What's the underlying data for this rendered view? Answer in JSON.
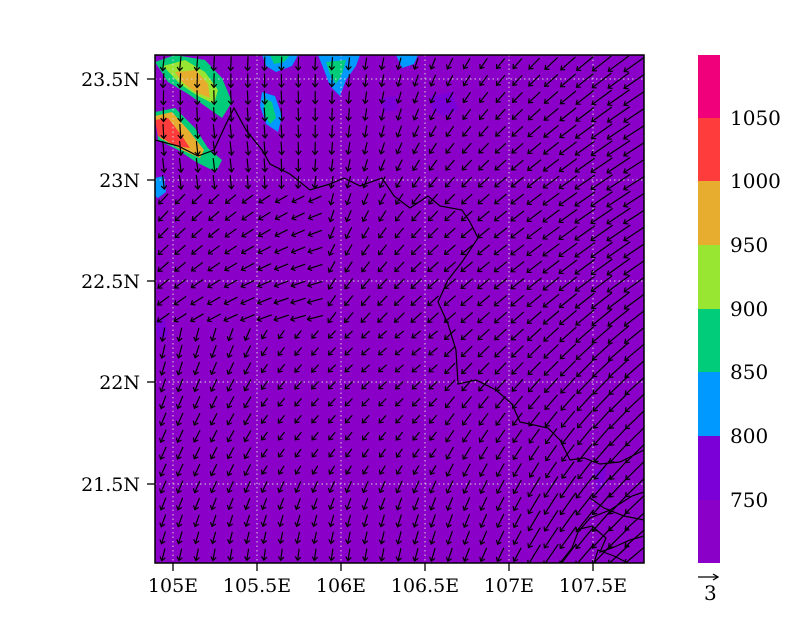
{
  "map": {
    "x_axis": {
      "ticks": [
        "105E",
        "105.5E",
        "106E",
        "106.5E",
        "107E",
        "107.5E"
      ]
    },
    "y_axis": {
      "ticks": [
        "23.5N",
        "23N",
        "22.5N",
        "22N",
        "21.5N"
      ]
    },
    "background_color": "#8b00c8",
    "grid": "dotted",
    "wind_reference_label": "3"
  },
  "colorbar": {
    "labels": [
      "750",
      "800",
      "850",
      "900",
      "950",
      "1000",
      "1050"
    ],
    "colors": [
      "#8b00c8",
      "#7b00d8",
      "#0099ff",
      "#00cc7a",
      "#99e632",
      "#e6ad2e",
      "#ff3c3c",
      "#f0007a"
    ]
  }
}
